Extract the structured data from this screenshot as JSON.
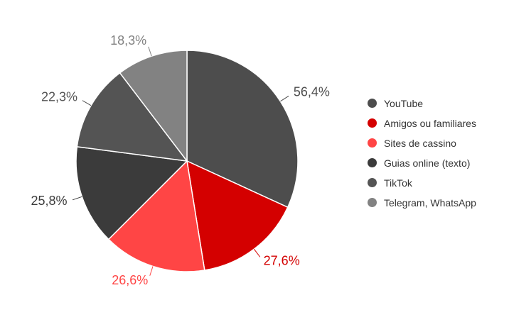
{
  "chart_data": {
    "type": "pie",
    "categories": [
      "YouTube",
      "Amigos ou familiares",
      "Sites de cassino",
      "Guias online (texto)",
      "TikTok",
      "Telegram, WhatsApp"
    ],
    "values": [
      56.4,
      27.6,
      26.6,
      25.8,
      22.3,
      18.3
    ],
    "value_labels": [
      "56,4%",
      "27,6%",
      "26,6%",
      "25,8%",
      "22,3%",
      "18,3%"
    ],
    "colors": [
      "#4d4d4d",
      "#d40000",
      "#ff4545",
      "#3b3b3b",
      "#545454",
      "#828282"
    ],
    "legend": "right"
  }
}
